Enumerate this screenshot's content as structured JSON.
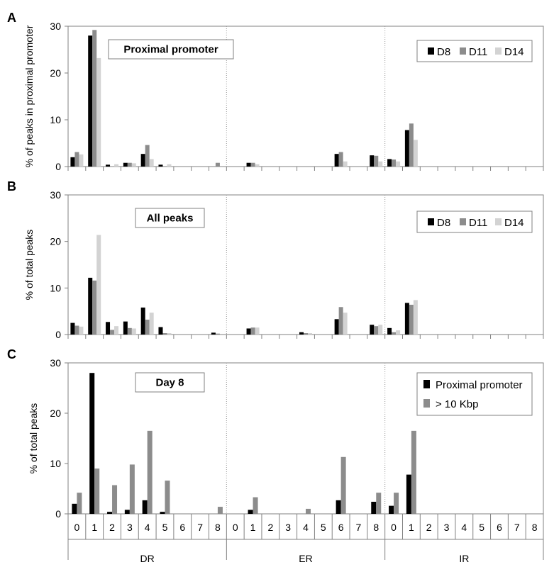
{
  "chart_data": [
    {
      "panel_letter": "A",
      "type": "bar",
      "ylabel": "% of peaks in proximal promoter",
      "ylim": [
        0,
        30
      ],
      "yticks": [
        "0",
        "10",
        "20",
        "30"
      ],
      "annotation": "Proximal promoter",
      "legend_position": "top-right",
      "groups": [
        {
          "label": "DR",
          "categories": [
            "0",
            "1",
            "2",
            "3",
            "4",
            "5",
            "6",
            "7",
            "8"
          ]
        },
        {
          "label": "ER",
          "categories": [
            "0",
            "1",
            "2",
            "3",
            "4",
            "5",
            "6",
            "7",
            "8"
          ]
        },
        {
          "label": "IR",
          "categories": [
            "0",
            "1",
            "2",
            "3",
            "4",
            "5",
            "6",
            "7",
            "8"
          ]
        }
      ],
      "series": [
        {
          "name": "D8",
          "color": "#000000",
          "values": [
            [
              2.0,
              28.0,
              0.4,
              0.8,
              2.7,
              0.4,
              0,
              0,
              0
            ],
            [
              0,
              0.8,
              0,
              0,
              0,
              0,
              2.7,
              0,
              2.4
            ],
            [
              1.6,
              7.8,
              0,
              0,
              0,
              0,
              0,
              0,
              0
            ]
          ]
        },
        {
          "name": "D11",
          "color": "#8c8c8c",
          "values": [
            [
              3.1,
              29.2,
              0,
              0.8,
              4.6,
              0,
              0,
              0,
              0.8
            ],
            [
              0,
              0.8,
              0,
              0,
              0,
              0,
              3.1,
              0,
              2.3
            ],
            [
              1.5,
              9.2,
              0,
              0,
              0,
              0,
              0,
              0,
              0
            ]
          ]
        },
        {
          "name": "D14",
          "color": "#d3d3d3",
          "values": [
            [
              2.6,
              23.2,
              0.5,
              0.7,
              1.6,
              0.5,
              0,
              0,
              0
            ],
            [
              0,
              0.5,
              0,
              0,
              0,
              0,
              1.1,
              0,
              1.1
            ],
            [
              1.1,
              5.7,
              0,
              0,
              0,
              0,
              0,
              0,
              0
            ]
          ]
        }
      ]
    },
    {
      "panel_letter": "B",
      "type": "bar",
      "ylabel": "% of total peaks",
      "ylim": [
        0,
        30
      ],
      "yticks": [
        "0",
        "10",
        "20",
        "30"
      ],
      "annotation": "All peaks",
      "legend_position": "top-right",
      "groups": [
        {
          "label": "DR",
          "categories": [
            "0",
            "1",
            "2",
            "3",
            "4",
            "5",
            "6",
            "7",
            "8"
          ]
        },
        {
          "label": "ER",
          "categories": [
            "0",
            "1",
            "2",
            "3",
            "4",
            "5",
            "6",
            "7",
            "8"
          ]
        },
        {
          "label": "IR",
          "categories": [
            "0",
            "1",
            "2",
            "3",
            "4",
            "5",
            "6",
            "7",
            "8"
          ]
        }
      ],
      "series": [
        {
          "name": "D8",
          "color": "#000000",
          "values": [
            [
              2.5,
              12.2,
              2.7,
              2.8,
              5.8,
              1.6,
              0,
              0,
              0.4
            ],
            [
              0,
              1.3,
              0,
              0,
              0.5,
              0,
              3.3,
              0,
              2.1
            ],
            [
              1.4,
              6.8,
              0,
              0,
              0,
              0,
              0,
              0,
              0
            ]
          ]
        },
        {
          "name": "D11",
          "color": "#8c8c8c",
          "values": [
            [
              1.9,
              11.6,
              1.0,
              1.4,
              3.2,
              0.3,
              0,
              0,
              0.2
            ],
            [
              0,
              1.5,
              0,
              0,
              0.3,
              0,
              5.9,
              0,
              1.8
            ],
            [
              0.5,
              6.4,
              0,
              0,
              0,
              0,
              0,
              0,
              0
            ]
          ]
        },
        {
          "name": "D14",
          "color": "#d3d3d3",
          "values": [
            [
              1.7,
              21.4,
              1.8,
              1.3,
              4.7,
              0.3,
              0,
              0,
              0
            ],
            [
              0,
              1.5,
              0,
              0,
              0.3,
              0,
              4.7,
              0,
              2.1
            ],
            [
              0.9,
              7.4,
              0,
              0,
              0,
              0,
              0,
              0,
              0
            ]
          ]
        }
      ]
    },
    {
      "panel_letter": "C",
      "type": "bar",
      "ylabel": "% of total peaks",
      "ylim": [
        0,
        30
      ],
      "yticks": [
        "0",
        "10",
        "20",
        "30"
      ],
      "annotation": "Day 8",
      "legend_position": "top-right",
      "groups": [
        {
          "label": "DR",
          "categories": [
            "0",
            "1",
            "2",
            "3",
            "4",
            "5",
            "6",
            "7",
            "8"
          ]
        },
        {
          "label": "ER",
          "categories": [
            "0",
            "1",
            "2",
            "3",
            "4",
            "5",
            "6",
            "7",
            "8"
          ]
        },
        {
          "label": "IR",
          "categories": [
            "0",
            "1",
            "2",
            "3",
            "4",
            "5",
            "6",
            "7",
            "8"
          ]
        }
      ],
      "series": [
        {
          "name": "Proximal promoter",
          "color": "#000000",
          "values": [
            [
              2.0,
              28.0,
              0.4,
              0.8,
              2.7,
              0.4,
              0,
              0,
              0
            ],
            [
              0,
              0.8,
              0,
              0,
              0,
              0,
              2.7,
              0,
              2.4
            ],
            [
              1.6,
              7.8,
              0,
              0,
              0,
              0,
              0,
              0,
              0
            ]
          ]
        },
        {
          "name": "> 10 Kbp",
          "color": "#8c8c8c",
          "values": [
            [
              4.2,
              9.0,
              5.7,
              9.8,
              16.5,
              6.6,
              0,
              0,
              1.4
            ],
            [
              0,
              3.3,
              0,
              0,
              1.0,
              0,
              11.3,
              0,
              4.2
            ],
            [
              4.2,
              16.5,
              0,
              0,
              0,
              0,
              0,
              0,
              0
            ]
          ]
        }
      ]
    }
  ]
}
